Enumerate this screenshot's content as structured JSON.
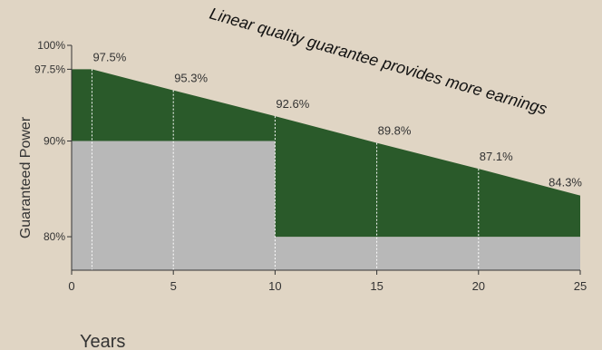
{
  "chart_data": {
    "type": "area",
    "title": "Linear quality guarantee provides more earnings",
    "xlabel": "Years",
    "ylabel": "Guaranteed Power",
    "xlim": [
      0,
      25
    ],
    "ylim": [
      76.5,
      100
    ],
    "x_ticks": [
      "0",
      "5",
      "10",
      "15",
      "20",
      "25"
    ],
    "x_tick_values": [
      0,
      5,
      10,
      15,
      20,
      25
    ],
    "y_ticks": [
      "100%",
      "97.5%",
      "90%",
      "80%"
    ],
    "y_tick_values": [
      100,
      97.5,
      90,
      80
    ],
    "series": [
      {
        "name": "",
        "type": "line-area",
        "x": [
          1,
          5,
          10,
          15,
          20,
          25
        ],
        "y": [
          97.5,
          95.3,
          92.6,
          89.8,
          87.1,
          84.3
        ],
        "start": [
          0,
          97.5
        ]
      },
      {
        "name": "",
        "type": "step",
        "x": [
          0,
          10,
          10,
          25
        ],
        "y": [
          90,
          90,
          80,
          80
        ]
      }
    ],
    "data_labels": [
      "97.5%",
      "95.3%",
      "92.6%",
      "89.8%",
      "87.1%",
      "84.3%"
    ],
    "data_label_points": [
      [
        1,
        97.5
      ],
      [
        5,
        95.3
      ],
      [
        10,
        92.6
      ],
      [
        15,
        89.8
      ],
      [
        20,
        87.1
      ],
      [
        25,
        84.3
      ]
    ],
    "colors": {
      "background": "#e0d5c4",
      "linear_area": "#2a5a2a",
      "step_area": "#b8b8b8",
      "axis": "#333333",
      "guide_lines": "#ffffff",
      "title": "#111111"
    },
    "grid": false,
    "legend": "none"
  }
}
